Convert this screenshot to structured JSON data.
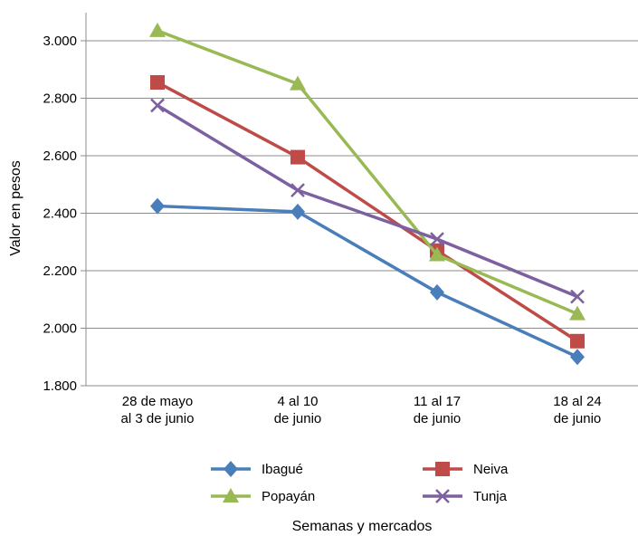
{
  "chart_data": {
    "type": "line",
    "categories": [
      [
        "28 de mayo",
        "al 3 de junio"
      ],
      [
        "4 al 10",
        "de junio"
      ],
      [
        "11 al 17",
        "de junio"
      ],
      [
        "18 al 24",
        "de junio"
      ]
    ],
    "xlabel": "Semanas y mercados",
    "ylabel": "Valor en pesos",
    "ylim": [
      1800,
      3000
    ],
    "yticks": [
      1800,
      2000,
      2200,
      2400,
      2600,
      2800,
      3000
    ],
    "ytick_labels": [
      "1.800",
      "2.000",
      "2.200",
      "2.400",
      "2.600",
      "2.800",
      "3.000"
    ],
    "grid": "horizontal",
    "legend_position": "bottom",
    "series": [
      {
        "name": "Ibagué",
        "values": [
          2425,
          2405,
          2125,
          1900
        ],
        "color": "#4a7ebb",
        "marker": "diamond"
      },
      {
        "name": "Neiva",
        "values": [
          2855,
          2595,
          2270,
          1955
        ],
        "color": "#be4b48",
        "marker": "square"
      },
      {
        "name": "Popayán",
        "values": [
          3035,
          2850,
          2255,
          2050
        ],
        "color": "#98b954",
        "marker": "triangle"
      },
      {
        "name": "Tunja",
        "values": [
          2775,
          2480,
          2310,
          2110
        ],
        "color": "#7d60a0",
        "marker": "x"
      }
    ]
  }
}
